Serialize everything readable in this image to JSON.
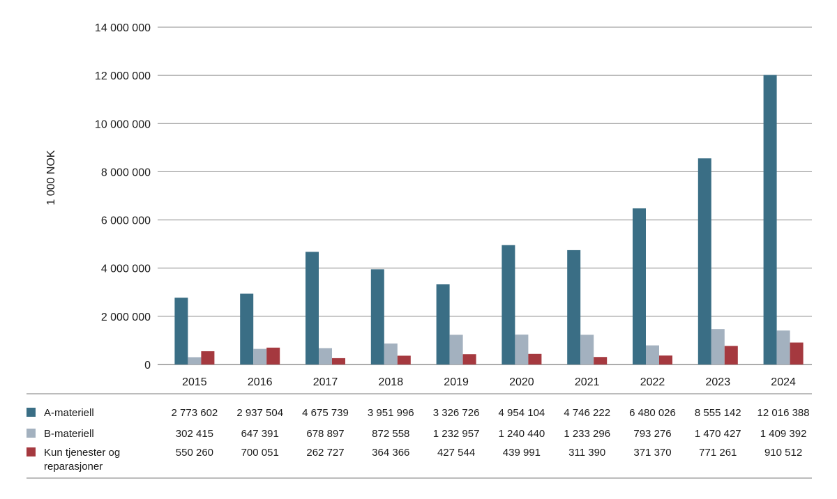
{
  "chart_data": {
    "type": "bar",
    "ylabel": "1 000 NOK",
    "xlabel": "",
    "title": "",
    "ylim": [
      0,
      14000000
    ],
    "yticks": [
      0,
      2000000,
      4000000,
      6000000,
      8000000,
      10000000,
      12000000,
      14000000
    ],
    "ytick_labels": [
      "0",
      "2 000 000",
      "4 000 000",
      "6 000 000",
      "8 000 000",
      "10 000 000",
      "12 000 000",
      "14 000 000"
    ],
    "grid": true,
    "legend_placement": "bottom (data table)",
    "categories": [
      "2015",
      "2016",
      "2017",
      "2018",
      "2019",
      "2020",
      "2021",
      "2022",
      "2023",
      "2024"
    ],
    "series": [
      {
        "name": "A-materiell",
        "color": "#3a6e85",
        "values": [
          2773602,
          2937504,
          4675739,
          3951996,
          3326726,
          4954104,
          4746222,
          6480026,
          8555142,
          12016388
        ],
        "labels": [
          "2 773 602",
          "2 937 504",
          "4 675 739",
          "3 951 996",
          "3 326 726",
          "4 954 104",
          "4 746 222",
          "6 480 026",
          "8 555 142",
          "12 016 388"
        ]
      },
      {
        "name": "B-materiell",
        "color": "#a3b1bf",
        "values": [
          302415,
          647391,
          678897,
          872558,
          1232957,
          1240440,
          1233296,
          793276,
          1470427,
          1409392
        ],
        "labels": [
          "302 415",
          "647 391",
          "678 897",
          "872 558",
          "1 232 957",
          "1 240 440",
          "1 233 296",
          "793 276",
          "1 470 427",
          "1 409 392"
        ]
      },
      {
        "name": "Kun tjenester og reparasjoner",
        "name_lines": [
          "Kun tjenester og",
          "reparasjoner"
        ],
        "color": "#a5393f",
        "values": [
          550260,
          700051,
          262727,
          364366,
          427544,
          439991,
          311390,
          371370,
          771261,
          910512
        ],
        "labels": [
          "550 260",
          "700 051",
          "262 727",
          "364 366",
          "427 544",
          "439 991",
          "311 390",
          "371 370",
          "771 261",
          "910 512"
        ]
      }
    ]
  }
}
